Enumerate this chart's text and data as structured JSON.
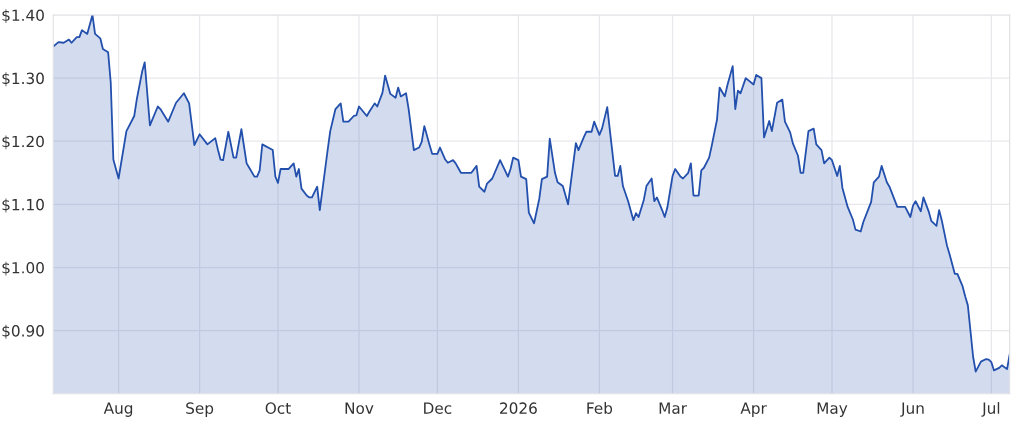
{
  "chart_data": {
    "type": "area",
    "xlim": [
      "2025-07-07",
      "2026-07-08"
    ],
    "ylim": [
      0.8,
      1.4
    ],
    "yticks": [
      {
        "value": 0.9,
        "label": "$0.90"
      },
      {
        "value": 1.0,
        "label": "$1.00"
      },
      {
        "value": 1.1,
        "label": "$1.10"
      },
      {
        "value": 1.2,
        "label": "$1.20"
      },
      {
        "value": 1.3,
        "label": "$1.30"
      },
      {
        "value": 1.4,
        "label": "$1.40"
      }
    ],
    "xticks": [
      {
        "value": "2025-08-01",
        "label": "Aug"
      },
      {
        "value": "2025-09-01",
        "label": "Sep"
      },
      {
        "value": "2025-10-01",
        "label": "Oct"
      },
      {
        "value": "2025-11-01",
        "label": "Nov"
      },
      {
        "value": "2025-12-01",
        "label": "Dec"
      },
      {
        "value": "2026-01-01",
        "label": "2026"
      },
      {
        "value": "2026-02-01",
        "label": "Feb"
      },
      {
        "value": "2026-03-01",
        "label": "Mar"
      },
      {
        "value": "2026-04-01",
        "label": "Apr"
      },
      {
        "value": "2026-05-01",
        "label": "May"
      },
      {
        "value": "2026-06-01",
        "label": "Jun"
      },
      {
        "value": "2026-07-01",
        "label": "Jul"
      }
    ],
    "grid": true,
    "marker": "none",
    "line_style": "solid",
    "x": [
      "2025-07-07",
      "2025-07-09",
      "2025-07-11",
      "2025-07-13",
      "2025-07-14",
      "2025-07-16",
      "2025-07-17",
      "2025-07-18",
      "2025-07-20",
      "2025-07-22",
      "2025-07-23",
      "2025-07-25",
      "2025-07-26",
      "2025-07-28",
      "2025-07-29",
      "2025-07-30",
      "2025-08-01",
      "2025-08-04",
      "2025-08-07",
      "2025-08-08",
      "2025-08-10",
      "2025-08-11",
      "2025-08-13",
      "2025-08-16",
      "2025-08-17",
      "2025-08-20",
      "2025-08-23",
      "2025-08-26",
      "2025-08-28",
      "2025-08-30",
      "2025-09-01",
      "2025-09-04",
      "2025-09-07",
      "2025-09-08",
      "2025-09-09",
      "2025-09-10",
      "2025-09-12",
      "2025-09-14",
      "2025-09-15",
      "2025-09-17",
      "2025-09-19",
      "2025-09-20",
      "2025-09-22",
      "2025-09-23",
      "2025-09-24",
      "2025-09-25",
      "2025-09-29",
      "2025-09-30",
      "2025-10-01",
      "2025-10-02",
      "2025-10-05",
      "2025-10-07",
      "2025-10-08",
      "2025-10-09",
      "2025-10-10",
      "2025-10-12",
      "2025-10-13",
      "2025-10-14",
      "2025-10-16",
      "2025-10-17",
      "2025-10-20",
      "2025-10-21",
      "2025-10-23",
      "2025-10-25",
      "2025-10-26",
      "2025-10-28",
      "2025-10-30",
      "2025-10-31",
      "2025-11-01",
      "2025-11-04",
      "2025-11-05",
      "2025-11-07",
      "2025-11-08",
      "2025-11-10",
      "2025-11-11",
      "2025-11-13",
      "2025-11-15",
      "2025-11-16",
      "2025-11-17",
      "2025-11-19",
      "2025-11-20",
      "2025-11-22",
      "2025-11-24",
      "2025-11-25",
      "2025-11-26",
      "2025-11-28",
      "2025-11-29",
      "2025-12-01",
      "2025-12-02",
      "2025-12-04",
      "2025-12-05",
      "2025-12-07",
      "2025-12-08",
      "2025-12-10",
      "2025-12-14",
      "2025-12-16",
      "2025-12-17",
      "2025-12-19",
      "2025-12-20",
      "2025-12-22",
      "2025-12-25",
      "2025-12-28",
      "2025-12-29",
      "2025-12-30",
      "2026-01-01",
      "2026-01-02",
      "2026-01-04",
      "2026-01-05",
      "2026-01-07",
      "2026-01-09",
      "2026-01-10",
      "2026-01-12",
      "2026-01-13",
      "2026-01-15",
      "2026-01-16",
      "2026-01-18",
      "2026-01-20",
      "2026-01-21",
      "2026-01-23",
      "2026-01-24",
      "2026-01-26",
      "2026-01-27",
      "2026-01-29",
      "2026-01-30",
      "2026-02-01",
      "2026-02-02",
      "2026-02-04",
      "2026-02-07",
      "2026-02-08",
      "2026-02-09",
      "2026-02-10",
      "2026-02-12",
      "2026-02-14",
      "2026-02-15",
      "2026-02-16",
      "2026-02-18",
      "2026-02-19",
      "2026-02-21",
      "2026-02-22",
      "2026-02-23",
      "2026-02-25",
      "2026-02-26",
      "2026-02-27",
      "2026-03-01",
      "2026-03-02",
      "2026-03-04",
      "2026-03-05",
      "2026-03-07",
      "2026-03-08",
      "2026-03-09",
      "2026-03-11",
      "2026-03-12",
      "2026-03-13",
      "2026-03-15",
      "2026-03-16",
      "2026-03-18",
      "2026-03-19",
      "2026-03-21",
      "2026-03-22",
      "2026-03-24",
      "2026-03-25",
      "2026-03-26",
      "2026-03-27",
      "2026-03-29",
      "2026-04-01",
      "2026-04-02",
      "2026-04-04",
      "2026-04-05",
      "2026-04-07",
      "2026-04-08",
      "2026-04-10",
      "2026-04-12",
      "2026-04-13",
      "2026-04-15",
      "2026-04-16",
      "2026-04-18",
      "2026-04-19",
      "2026-04-20",
      "2026-04-22",
      "2026-04-24",
      "2026-04-25",
      "2026-04-27",
      "2026-04-28",
      "2026-04-30",
      "2026-05-01",
      "2026-05-03",
      "2026-05-04",
      "2026-05-05",
      "2026-05-07",
      "2026-05-09",
      "2026-05-10",
      "2026-05-12",
      "2026-05-13",
      "2026-05-16",
      "2026-05-17",
      "2026-05-19",
      "2026-05-20",
      "2026-05-22",
      "2026-05-23",
      "2026-05-26",
      "2026-05-29",
      "2026-05-31",
      "2026-06-01",
      "2026-06-02",
      "2026-06-04",
      "2026-06-05",
      "2026-06-07",
      "2026-06-08",
      "2026-06-10",
      "2026-06-11",
      "2026-06-12",
      "2026-06-14",
      "2026-06-15",
      "2026-06-17",
      "2026-06-18",
      "2026-06-20",
      "2026-06-21",
      "2026-06-22",
      "2026-06-24",
      "2026-06-25",
      "2026-06-27",
      "2026-06-29",
      "2026-06-30",
      "2026-07-01",
      "2026-07-02",
      "2026-07-04",
      "2026-07-05",
      "2026-07-07",
      "2026-07-08"
    ],
    "series": [
      {
        "color": "#2350ad",
        "values": [
          1.35,
          1.357,
          1.356,
          1.361,
          1.356,
          1.365,
          1.365,
          1.376,
          1.37,
          1.4,
          1.37,
          1.363,
          1.346,
          1.341,
          1.293,
          1.171,
          1.141,
          1.216,
          1.24,
          1.267,
          1.31,
          1.325,
          1.225,
          1.255,
          1.251,
          1.231,
          1.261,
          1.276,
          1.26,
          1.194,
          1.211,
          1.195,
          1.205,
          1.187,
          1.171,
          1.17,
          1.215,
          1.174,
          1.174,
          1.219,
          1.165,
          1.158,
          1.144,
          1.144,
          1.154,
          1.195,
          1.186,
          1.144,
          1.134,
          1.156,
          1.156,
          1.165,
          1.144,
          1.156,
          1.125,
          1.114,
          1.111,
          1.111,
          1.128,
          1.091,
          1.186,
          1.216,
          1.251,
          1.26,
          1.231,
          1.231,
          1.24,
          1.241,
          1.255,
          1.24,
          1.247,
          1.26,
          1.255,
          1.277,
          1.304,
          1.275,
          1.269,
          1.285,
          1.271,
          1.276,
          1.251,
          1.186,
          1.19,
          1.199,
          1.224,
          1.194,
          1.18,
          1.18,
          1.19,
          1.171,
          1.166,
          1.17,
          1.165,
          1.15,
          1.15,
          1.161,
          1.128,
          1.12,
          1.133,
          1.141,
          1.17,
          1.144,
          1.156,
          1.174,
          1.17,
          1.144,
          1.14,
          1.087,
          1.07,
          1.109,
          1.14,
          1.144,
          1.204,
          1.15,
          1.135,
          1.129,
          1.1,
          1.132,
          1.197,
          1.186,
          1.206,
          1.215,
          1.215,
          1.231,
          1.21,
          1.22,
          1.254,
          1.145,
          1.145,
          1.161,
          1.129,
          1.105,
          1.075,
          1.086,
          1.08,
          1.107,
          1.129,
          1.141,
          1.105,
          1.111,
          1.091,
          1.08,
          1.095,
          1.145,
          1.156,
          1.144,
          1.141,
          1.15,
          1.165,
          1.114,
          1.114,
          1.154,
          1.158,
          1.174,
          1.193,
          1.234,
          1.285,
          1.271,
          1.289,
          1.319,
          1.251,
          1.28,
          1.276,
          1.3,
          1.29,
          1.305,
          1.3,
          1.206,
          1.232,
          1.216,
          1.261,
          1.266,
          1.231,
          1.214,
          1.197,
          1.177,
          1.15,
          1.15,
          1.216,
          1.22,
          1.195,
          1.186,
          1.165,
          1.174,
          1.17,
          1.145,
          1.161,
          1.126,
          1.096,
          1.076,
          1.06,
          1.057,
          1.072,
          1.104,
          1.135,
          1.144,
          1.161,
          1.135,
          1.128,
          1.096,
          1.096,
          1.08,
          1.098,
          1.105,
          1.089,
          1.111,
          1.089,
          1.074,
          1.066,
          1.091,
          1.075,
          1.035,
          1.021,
          0.99,
          0.99,
          0.97,
          0.954,
          0.94,
          0.859,
          0.835,
          0.851,
          0.855,
          0.854,
          0.85,
          0.837,
          0.841,
          0.845,
          0.839,
          0.862
        ]
      }
    ]
  }
}
